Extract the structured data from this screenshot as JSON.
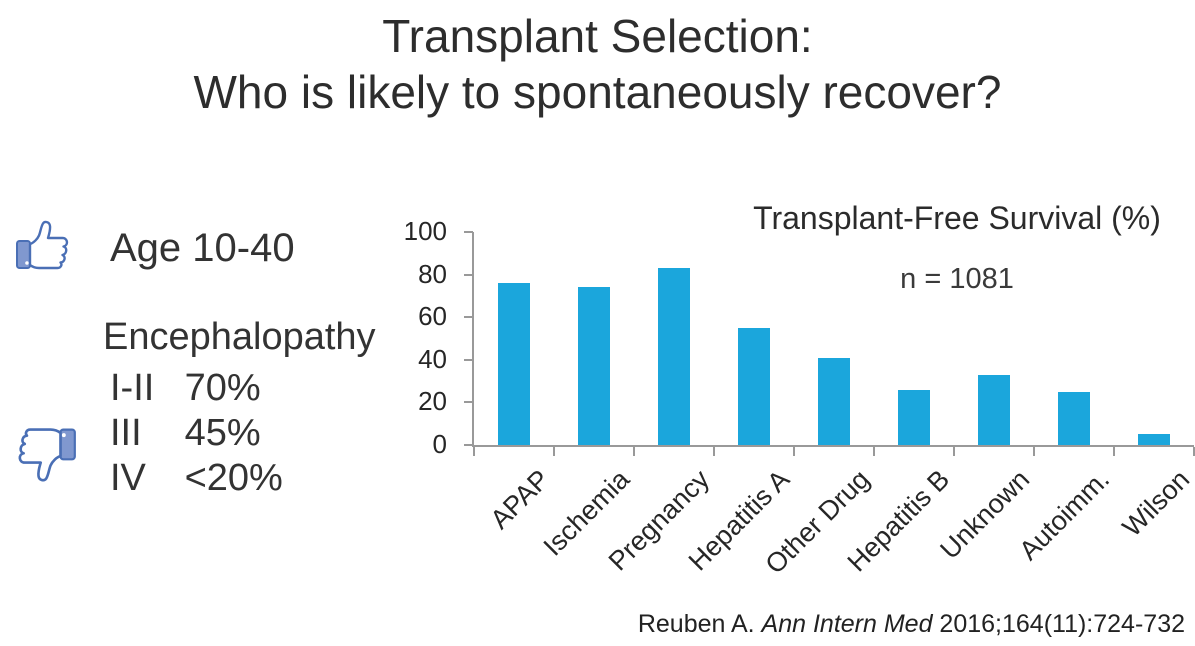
{
  "slide": {
    "title_line1": "Transplant Selection:",
    "title_line2": "Who is likely to spontaneously recover?",
    "favorable": {
      "icon": "thumbs-up-icon",
      "label": "Age 10-40"
    },
    "unfavorable": {
      "icon": "thumbs-down-icon",
      "heading": "Encephalopathy",
      "rows": [
        {
          "grade": "I-II",
          "value": "70%"
        },
        {
          "grade": "III",
          "value": "45%"
        },
        {
          "grade": "IV",
          "value": "<20%"
        }
      ]
    },
    "citation": {
      "prefix": "Reuben A. ",
      "journal": "Ann Intern Med",
      "suffix": " 2016;164(11):724-732"
    },
    "colors": {
      "thumb_outline": "#4A6FB5",
      "thumb_cuff_fill": "#8098CF"
    }
  },
  "chart_data": {
    "type": "bar",
    "title": "Transplant-Free Survival (%)",
    "annotation": "n = 1081",
    "categories": [
      "APAP",
      "Ischemia",
      "Pregnancy",
      "Hepatitis A",
      "Other Drug",
      "Hepatitis B",
      "Unknown",
      "Autoimm.",
      "Wilson"
    ],
    "values": [
      76,
      74,
      83,
      55,
      41,
      26,
      33,
      25,
      5
    ],
    "xlabel": "",
    "ylabel": "",
    "ylim": [
      0,
      100
    ],
    "yticks": [
      0,
      20,
      40,
      60,
      80,
      100
    ],
    "grid": false,
    "legend": false,
    "bar_color": "#1BA6DC",
    "axis_color": "#999999",
    "x_label_rotation_deg": -45
  }
}
